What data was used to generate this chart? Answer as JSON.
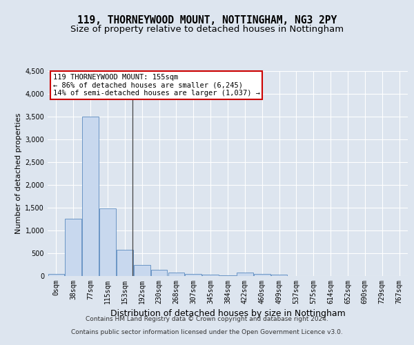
{
  "title1": "119, THORNEYWOOD MOUNT, NOTTINGHAM, NG3 2PY",
  "title2": "Size of property relative to detached houses in Nottingham",
  "xlabel": "Distribution of detached houses by size in Nottingham",
  "ylabel": "Number of detached properties",
  "bin_labels": [
    "0sqm",
    "38sqm",
    "77sqm",
    "115sqm",
    "153sqm",
    "192sqm",
    "230sqm",
    "268sqm",
    "307sqm",
    "345sqm",
    "384sqm",
    "422sqm",
    "460sqm",
    "499sqm",
    "537sqm",
    "575sqm",
    "614sqm",
    "652sqm",
    "690sqm",
    "729sqm",
    "767sqm"
  ],
  "bar_values": [
    50,
    1250,
    3500,
    1480,
    580,
    240,
    130,
    80,
    50,
    30,
    20,
    70,
    50,
    30,
    0,
    0,
    0,
    0,
    0,
    0,
    0
  ],
  "bar_color": "#c8d8ee",
  "bar_edge_color": "#5a8abf",
  "annotation_text1": "119 THORNEYWOOD MOUNT: 155sqm",
  "annotation_text2": "← 86% of detached houses are smaller (6,245)",
  "annotation_text3": "14% of semi-detached houses are larger (1,037) →",
  "annotation_box_facecolor": "#ffffff",
  "annotation_box_edgecolor": "#cc0000",
  "ylim": [
    0,
    4500
  ],
  "yticks": [
    0,
    500,
    1000,
    1500,
    2000,
    2500,
    3000,
    3500,
    4000,
    4500
  ],
  "background_color": "#dde5ef",
  "plot_background": "#dde5ef",
  "grid_color": "#ffffff",
  "property_line_x": 4.45,
  "footer_line1": "Contains HM Land Registry data © Crown copyright and database right 2024.",
  "footer_line2": "Contains public sector information licensed under the Open Government Licence v3.0.",
  "title_fontsize": 10.5,
  "subtitle_fontsize": 9.5,
  "ylabel_fontsize": 8,
  "xlabel_fontsize": 9,
  "tick_fontsize": 7,
  "annot_fontsize": 7.5,
  "footer_fontsize": 6.5
}
